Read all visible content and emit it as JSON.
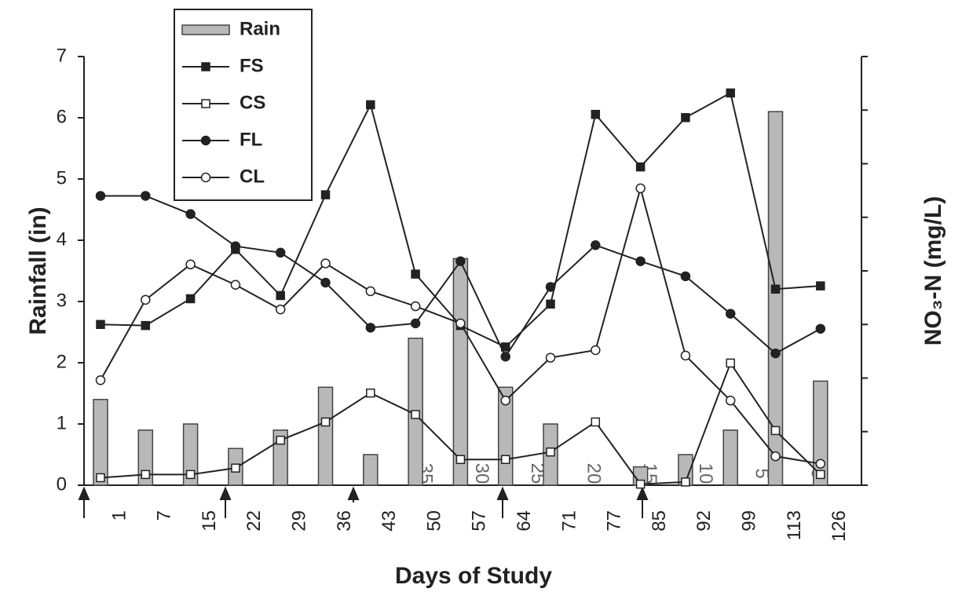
{
  "chart_data": {
    "type": "bar-line",
    "y_label": "Rainfall (in)",
    "y2_label": "NO₃-N (mg/L)",
    "x_label": "Days of Study",
    "categories": [
      "1",
      "7",
      "15",
      "22",
      "29",
      "36",
      "43",
      "50",
      "57",
      "64",
      "71",
      "77",
      "85",
      "92",
      "99",
      "113",
      "126"
    ],
    "ylim": [
      0,
      7
    ],
    "yticks": [
      0,
      1,
      2,
      3,
      4,
      5,
      6,
      7
    ],
    "y2lim": [
      0,
      40
    ],
    "y2ticks": [
      0,
      5,
      10,
      15,
      20,
      25,
      30,
      35,
      40
    ],
    "series": [
      {
        "name": "Rain",
        "kind": "bar",
        "color": "#b8b8b8",
        "values": [
          1.4,
          0.9,
          1.0,
          0.6,
          0.9,
          1.6,
          0.5,
          2.4,
          3.7,
          1.6,
          1.0,
          null,
          0.3,
          0.5,
          0.9,
          6.1,
          1.7
        ]
      },
      {
        "name": "FS",
        "kind": "line",
        "marker": "square",
        "filled": true,
        "axis": "y2",
        "color": "#222",
        "values": [
          15.0,
          14.9,
          17.4,
          22.0,
          17.7,
          27.1,
          35.5,
          19.7,
          14.9,
          12.9,
          16.9,
          34.6,
          29.7,
          34.3,
          36.6,
          18.3,
          18.6
        ]
      },
      {
        "name": "CS",
        "kind": "line",
        "marker": "square",
        "filled": false,
        "axis": "y2",
        "color": "#222",
        "values": [
          0.7,
          1.0,
          1.0,
          1.6,
          4.2,
          5.9,
          8.6,
          6.6,
          2.4,
          2.4,
          3.1,
          5.9,
          0.1,
          0.3,
          11.4,
          5.1,
          1.0
        ]
      },
      {
        "name": "FL",
        "kind": "line",
        "marker": "circle",
        "filled": true,
        "axis": "y2",
        "color": "#222",
        "values": [
          27.0,
          27.0,
          25.3,
          22.3,
          21.7,
          18.9,
          14.7,
          15.1,
          20.9,
          12.0,
          18.5,
          22.4,
          20.9,
          19.5,
          16.0,
          12.3,
          14.6
        ]
      },
      {
        "name": "CL",
        "kind": "line",
        "marker": "circle",
        "filled": false,
        "axis": "y2",
        "color": "#222",
        "values": [
          9.8,
          17.3,
          20.6,
          18.7,
          16.4,
          20.7,
          18.1,
          16.7,
          15.1,
          7.9,
          11.9,
          12.6,
          27.7,
          12.1,
          7.9,
          2.7,
          2.0
        ]
      }
    ]
  }
}
